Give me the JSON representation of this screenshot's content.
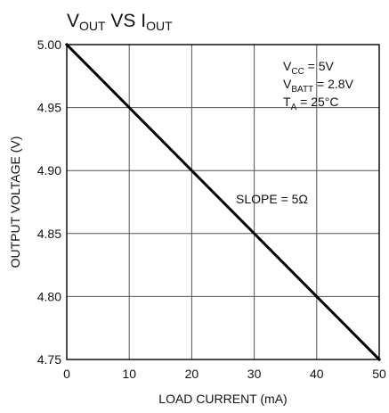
{
  "chart_data": {
    "type": "line",
    "title": {
      "parts": [
        {
          "text": "V",
          "sub": "OUT"
        },
        {
          "text": " VS I",
          "sub": "OUT"
        }
      ]
    },
    "xlabel": "LOAD CURRENT (mA)",
    "ylabel": "OUTPUT VOLTAGE (V)",
    "xlim": [
      0,
      50
    ],
    "ylim": [
      4.75,
      5.0
    ],
    "xticks": [
      0,
      10,
      20,
      30,
      40,
      50
    ],
    "xtick_labels": [
      "0",
      "10",
      "20",
      "30",
      "40",
      "50"
    ],
    "yticks": [
      4.75,
      4.8,
      4.85,
      4.9,
      4.95,
      5.0
    ],
    "ytick_labels": [
      "4.75",
      "4.80",
      "4.85",
      "4.90",
      "4.95",
      "5.00"
    ],
    "grid": true,
    "series": [
      {
        "x": [
          0,
          10,
          20,
          30,
          40,
          50
        ],
        "y": [
          5.0,
          4.95,
          4.9,
          4.85,
          4.8,
          4.75
        ],
        "color": "#000000"
      }
    ],
    "annotations": [
      {
        "parts": [
          {
            "text": "V",
            "sub": "CC"
          },
          {
            "text": " = 5V"
          }
        ]
      },
      {
        "parts": [
          {
            "text": "V",
            "sub": "BATT"
          },
          {
            "text": " = 2.8V"
          }
        ]
      },
      {
        "parts": [
          {
            "text": "T",
            "sub": "A"
          },
          {
            "text": " = 25°C"
          }
        ]
      },
      {
        "parts": [
          {
            "text": "SLOPE = 5Ω"
          }
        ]
      }
    ]
  }
}
